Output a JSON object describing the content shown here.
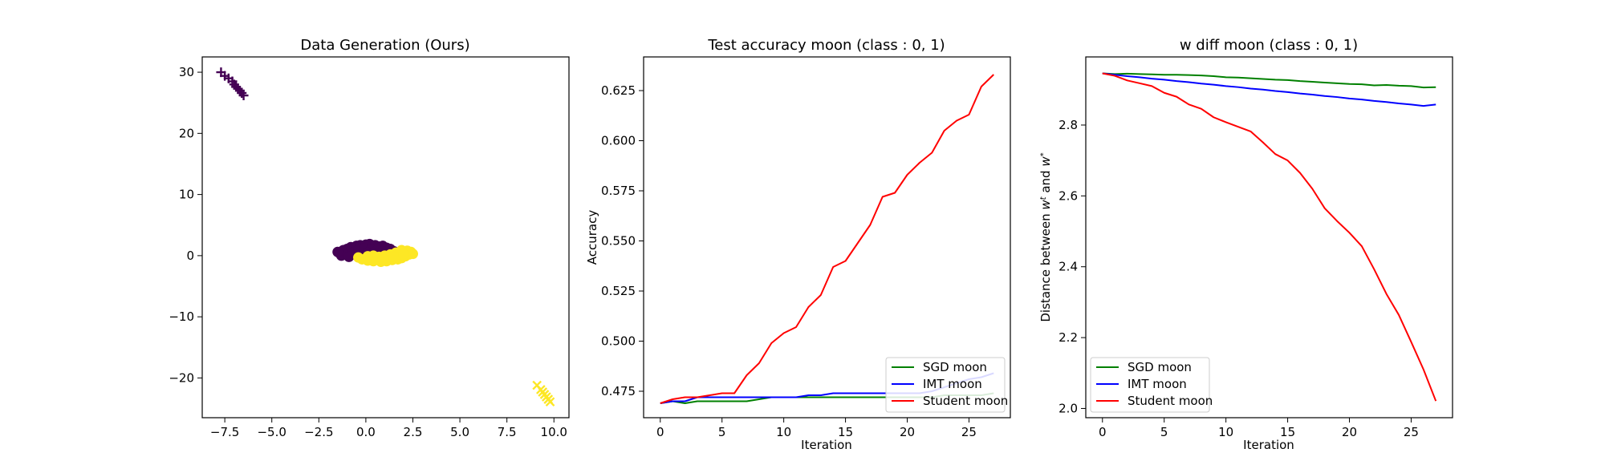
{
  "chart_data": [
    {
      "type": "scatter",
      "title": "Data Generation (Ours)",
      "xlabel": "",
      "ylabel": "",
      "xlim": [
        -8.7,
        10.8
      ],
      "ylim": [
        -26.5,
        32.5
      ],
      "xticks": [
        -7.5,
        -5.0,
        -2.5,
        0.0,
        2.5,
        5.0,
        7.5,
        10.0
      ],
      "xtick_labels": [
        "−7.5",
        "−5.0",
        "−2.5",
        "0.0",
        "2.5",
        "5.0",
        "7.5",
        "10.0"
      ],
      "yticks": [
        -20,
        -10,
        0,
        10,
        20,
        30
      ],
      "ytick_labels": [
        "−20",
        "−10",
        "0",
        "10",
        "20",
        "30"
      ],
      "grid": false,
      "series": [
        {
          "color": "#440154",
          "marker": "dot",
          "points": [
            [
              -1.4,
              0.4
            ],
            [
              -1.2,
              0.9
            ],
            [
              -1.0,
              1.1
            ],
            [
              -0.8,
              1.4
            ],
            [
              -0.5,
              1.6
            ],
            [
              -0.3,
              1.7
            ],
            [
              0.0,
              1.8
            ],
            [
              0.2,
              1.9
            ],
            [
              0.5,
              1.7
            ],
            [
              0.7,
              1.5
            ],
            [
              0.9,
              1.6
            ],
            [
              1.1,
              1.3
            ],
            [
              1.3,
              1.1
            ],
            [
              1.5,
              0.7
            ],
            [
              -1.3,
              0.0
            ],
            [
              -1.0,
              0.2
            ],
            [
              -0.7,
              0.5
            ],
            [
              -0.4,
              0.9
            ],
            [
              -0.1,
              1.2
            ],
            [
              0.3,
              1.1
            ],
            [
              0.6,
              0.9
            ],
            [
              0.9,
              0.7
            ],
            [
              -0.9,
              -0.2
            ],
            [
              -0.5,
              0.2
            ],
            [
              0.1,
              0.5
            ],
            [
              0.4,
              0.3
            ],
            [
              -0.2,
              0.0
            ],
            [
              -1.5,
              0.6
            ]
          ]
        },
        {
          "color": "#fde725",
          "marker": "dot",
          "points": [
            [
              -0.4,
              -0.3
            ],
            [
              -0.2,
              -0.6
            ],
            [
              0.1,
              -0.8
            ],
            [
              0.4,
              -0.9
            ],
            [
              0.8,
              -1.0
            ],
            [
              1.1,
              -0.9
            ],
            [
              1.4,
              -0.7
            ],
            [
              1.7,
              -0.6
            ],
            [
              1.9,
              -0.4
            ],
            [
              2.1,
              -0.1
            ],
            [
              2.3,
              0.2
            ],
            [
              2.4,
              0.6
            ],
            [
              2.5,
              0.3
            ],
            [
              2.2,
              0.8
            ],
            [
              1.9,
              0.9
            ],
            [
              1.6,
              0.5
            ],
            [
              1.3,
              0.2
            ],
            [
              1.0,
              0.0
            ],
            [
              0.7,
              -0.2
            ],
            [
              0.4,
              0.0
            ],
            [
              0.1,
              -0.1
            ],
            [
              1.5,
              -0.2
            ],
            [
              2.0,
              0.3
            ],
            [
              0.9,
              -0.5
            ]
          ]
        },
        {
          "color": "#440154",
          "marker": "plus",
          "points": [
            [
              -7.7,
              30.0
            ],
            [
              -7.5,
              29.4
            ],
            [
              -7.3,
              29.0
            ],
            [
              -7.1,
              28.5
            ],
            [
              -7.0,
              28.0
            ],
            [
              -6.9,
              27.6
            ],
            [
              -6.8,
              27.3
            ],
            [
              -6.7,
              27.0
            ],
            [
              -6.6,
              26.6
            ],
            [
              -6.5,
              26.2
            ]
          ]
        },
        {
          "color": "#fde725",
          "marker": "x",
          "points": [
            [
              9.1,
              -21.2
            ],
            [
              9.3,
              -21.9
            ],
            [
              9.4,
              -22.3
            ],
            [
              9.5,
              -22.7
            ],
            [
              9.6,
              -23.1
            ],
            [
              9.7,
              -23.5
            ],
            [
              9.8,
              -23.9
            ]
          ]
        }
      ]
    },
    {
      "type": "line",
      "title": "Test accuracy moon (class : 0, 1)",
      "xlabel": "Iteration",
      "ylabel": "Accuracy",
      "xlim": [
        -1.35,
        28.35
      ],
      "ylim": [
        0.4618,
        0.6418
      ],
      "xticks": [
        0,
        5,
        10,
        15,
        20,
        25
      ],
      "xtick_labels": [
        "0",
        "5",
        "10",
        "15",
        "20",
        "25"
      ],
      "yticks": [
        0.475,
        0.5,
        0.525,
        0.55,
        0.575,
        0.6,
        0.625
      ],
      "ytick_labels": [
        "0.475",
        "0.500",
        "0.525",
        "0.550",
        "0.575",
        "0.600",
        "0.625"
      ],
      "legend": "lower-right",
      "grid": false,
      "x": [
        0,
        1,
        2,
        3,
        4,
        5,
        6,
        7,
        8,
        9,
        10,
        11,
        12,
        13,
        14,
        15,
        16,
        17,
        18,
        19,
        20,
        21,
        22,
        23,
        24,
        25,
        26,
        27
      ],
      "series": [
        {
          "name": "SGD moon",
          "color": "#008000",
          "values": [
            0.469,
            0.47,
            0.469,
            0.47,
            0.47,
            0.47,
            0.47,
            0.47,
            0.471,
            0.472,
            0.472,
            0.472,
            0.472,
            0.472,
            0.472,
            0.472,
            0.472,
            0.472,
            0.472,
            0.472,
            0.472,
            0.472,
            0.472,
            0.473,
            0.473,
            0.473,
            0.473,
            0.474
          ]
        },
        {
          "name": "IMT moon",
          "color": "#0000ff",
          "values": [
            0.469,
            0.47,
            0.47,
            0.472,
            0.472,
            0.472,
            0.472,
            0.472,
            0.472,
            0.472,
            0.472,
            0.472,
            0.473,
            0.473,
            0.474,
            0.474,
            0.474,
            0.474,
            0.474,
            0.474,
            0.474,
            0.474,
            0.475,
            0.477,
            0.479,
            0.481,
            0.482,
            0.484
          ]
        },
        {
          "name": "Student moon",
          "color": "#ff0000",
          "values": [
            0.469,
            0.471,
            0.472,
            0.472,
            0.473,
            0.474,
            0.474,
            0.483,
            0.489,
            0.499,
            0.504,
            0.507,
            0.517,
            0.523,
            0.537,
            0.54,
            0.549,
            0.558,
            0.572,
            0.574,
            0.583,
            0.589,
            0.594,
            0.605,
            0.61,
            0.613,
            0.627,
            0.633
          ]
        }
      ]
    },
    {
      "type": "line",
      "title": "w diff moon (class : 0, 1)",
      "xlabel": "Iteration",
      "ylabel_parts": [
        "Distance between ",
        "w",
        "t",
        " and ",
        "w",
        "*"
      ],
      "xlim": [
        -1.35,
        28.35
      ],
      "ylim": [
        1.9739,
        2.9923
      ],
      "xticks": [
        0,
        5,
        10,
        15,
        20,
        25
      ],
      "xtick_labels": [
        "0",
        "5",
        "10",
        "15",
        "20",
        "25"
      ],
      "yticks": [
        2.0,
        2.2,
        2.4,
        2.6,
        2.8
      ],
      "ytick_labels": [
        "2.0",
        "2.2",
        "2.4",
        "2.6",
        "2.8"
      ],
      "legend": "lower-left",
      "grid": false,
      "x": [
        0,
        1,
        2,
        3,
        4,
        5,
        6,
        7,
        8,
        9,
        10,
        11,
        12,
        13,
        14,
        15,
        16,
        17,
        18,
        19,
        20,
        21,
        22,
        23,
        24,
        25,
        26,
        27
      ],
      "series": [
        {
          "name": "SGD moon",
          "color": "#008000",
          "values": [
            2.946,
            2.944,
            2.945,
            2.944,
            2.943,
            2.942,
            2.942,
            2.941,
            2.94,
            2.938,
            2.935,
            2.934,
            2.932,
            2.93,
            2.928,
            2.927,
            2.924,
            2.922,
            2.92,
            2.918,
            2.916,
            2.915,
            2.912,
            2.913,
            2.911,
            2.91,
            2.906,
            2.907
          ]
        },
        {
          "name": "IMT moon",
          "color": "#0000ff",
          "values": [
            2.946,
            2.942,
            2.938,
            2.935,
            2.931,
            2.928,
            2.924,
            2.921,
            2.917,
            2.914,
            2.91,
            2.907,
            2.903,
            2.9,
            2.896,
            2.893,
            2.889,
            2.886,
            2.882,
            2.879,
            2.875,
            2.872,
            2.868,
            2.865,
            2.861,
            2.858,
            2.854,
            2.858
          ]
        },
        {
          "name": "Student moon",
          "color": "#ff0000",
          "values": [
            2.946,
            2.939,
            2.926,
            2.918,
            2.91,
            2.891,
            2.88,
            2.858,
            2.846,
            2.822,
            2.808,
            2.795,
            2.782,
            2.751,
            2.718,
            2.7,
            2.665,
            2.62,
            2.565,
            2.529,
            2.496,
            2.458,
            2.393,
            2.323,
            2.264,
            2.188,
            2.11,
            2.021
          ]
        }
      ]
    }
  ]
}
